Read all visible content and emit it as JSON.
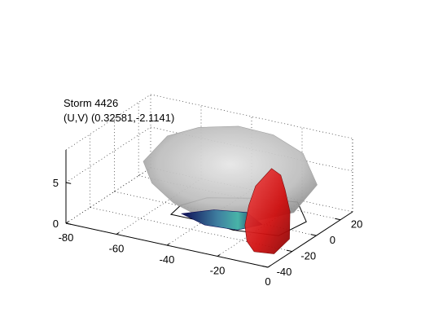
{
  "chart_data": {
    "type": "3d-surface",
    "title_lines": [
      "Storm 4426",
      "(U,V) (0.32581,-2.1141)"
    ],
    "xlabel": "",
    "ylabel": "",
    "zlabel": "",
    "x_ticks": [
      -80,
      -60,
      -40,
      -20,
      0
    ],
    "y_ticks": [
      -40,
      -20,
      0,
      20
    ],
    "z_ticks": [
      0,
      5
    ],
    "xlim": [
      -80,
      0
    ],
    "ylim": [
      -40,
      30
    ],
    "zlim": [
      0,
      9
    ],
    "grid": true,
    "surfaces": [
      {
        "name": "",
        "color": "#b9b9b9",
        "x_range": [
          -72,
          -8
        ],
        "y_range": [
          -12,
          30
        ],
        "z_range": [
          0,
          8
        ]
      },
      {
        "name": "",
        "color": "#d81818",
        "x_range": [
          -25,
          -2
        ],
        "y_range": [
          -30,
          10
        ],
        "z_range": [
          0,
          6
        ]
      },
      {
        "name": "",
        "color": "#1a1a6e",
        "x_range": [
          -50,
          -20
        ],
        "y_range": [
          -15,
          5
        ],
        "z_range": [
          0,
          1
        ]
      }
    ]
  }
}
